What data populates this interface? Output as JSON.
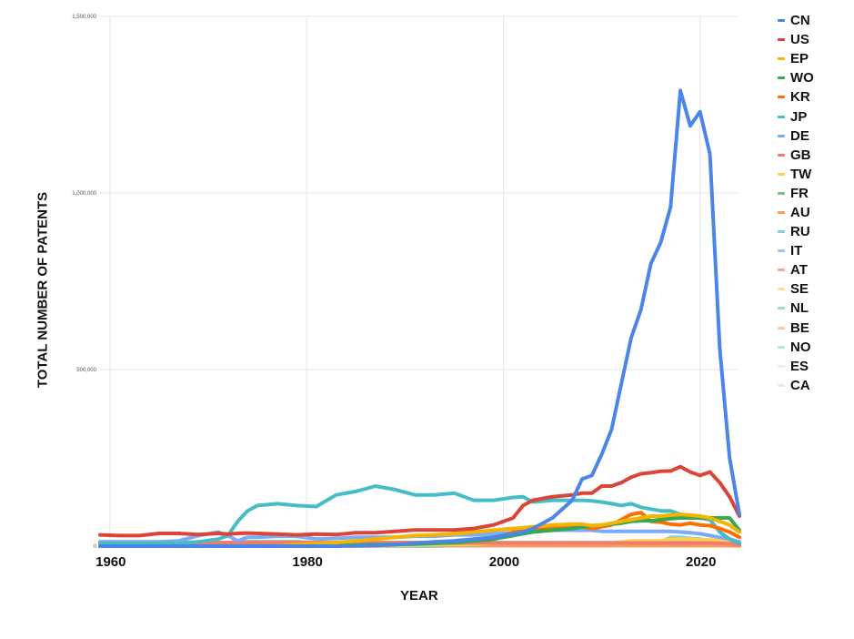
{
  "chart_data": {
    "type": "line",
    "title": "",
    "xlabel": "YEAR",
    "ylabel": "TOTAL NUMBER OF PATENTS",
    "xlim": [
      1959,
      2024
    ],
    "ylim": [
      0,
      1500000
    ],
    "x_ticks": [
      1960,
      1980,
      2000,
      2020
    ],
    "x_tick_labels": [
      "1960",
      "1980",
      "2000",
      "2020"
    ],
    "y_ticks": [
      0,
      500000,
      1000000,
      1500000
    ],
    "y_tick_labels": [
      "0",
      "500,000",
      "1,000,000",
      "1,500,000"
    ],
    "grid": true,
    "legend_position": "right",
    "x": [
      1959,
      1961,
      1963,
      1965,
      1967,
      1969,
      1971,
      1972,
      1973,
      1974,
      1975,
      1977,
      1979,
      1981,
      1983,
      1985,
      1987,
      1989,
      1991,
      1993,
      1995,
      1997,
      1999,
      2001,
      2002,
      2003,
      2005,
      2007,
      2008,
      2009,
      2010,
      2011,
      2012,
      2013,
      2014,
      2015,
      2016,
      2017,
      2018,
      2019,
      2020,
      2021,
      2022,
      2023,
      2024
    ],
    "series": [
      {
        "name": "CN",
        "color": "#4a86e8",
        "values": [
          0,
          0,
          0,
          0,
          0,
          0,
          0,
          0,
          0,
          0,
          0,
          0,
          0,
          0,
          0,
          1000,
          2000,
          4000,
          8000,
          12000,
          15000,
          20000,
          25000,
          35000,
          40000,
          50000,
          80000,
          130000,
          190000,
          200000,
          260000,
          330000,
          460000,
          590000,
          670000,
          800000,
          860000,
          960000,
          1290000,
          1190000,
          1230000,
          1110000,
          560000,
          250000,
          90000
        ]
      },
      {
        "name": "US",
        "color": "#db4437",
        "values": [
          32000,
          30000,
          30000,
          36000,
          36000,
          33000,
          36000,
          34000,
          36000,
          37000,
          36000,
          34000,
          32000,
          34000,
          33000,
          38000,
          38000,
          42000,
          46000,
          46000,
          46000,
          50000,
          60000,
          80000,
          115000,
          130000,
          140000,
          145000,
          150000,
          150000,
          170000,
          170000,
          180000,
          195000,
          205000,
          208000,
          212000,
          213000,
          225000,
          210000,
          200000,
          210000,
          180000,
          140000,
          85000
        ]
      },
      {
        "name": "EP",
        "color": "#f4b400",
        "values": [
          0,
          0,
          0,
          0,
          0,
          0,
          0,
          0,
          0,
          0,
          0,
          0,
          5000,
          8000,
          10000,
          15000,
          20000,
          25000,
          30000,
          32000,
          35000,
          40000,
          45000,
          50000,
          52000,
          55000,
          60000,
          62000,
          62000,
          58000,
          60000,
          65000,
          70000,
          75000,
          80000,
          85000,
          85000,
          88000,
          90000,
          88000,
          85000,
          80000,
          70000,
          60000,
          40000
        ]
      },
      {
        "name": "WO",
        "color": "#34a853",
        "values": [
          0,
          0,
          0,
          0,
          0,
          0,
          0,
          0,
          0,
          0,
          0,
          0,
          0,
          1000,
          2000,
          3000,
          4000,
          5000,
          6000,
          8000,
          10000,
          15000,
          20000,
          30000,
          35000,
          40000,
          45000,
          50000,
          55000,
          58000,
          60000,
          62000,
          65000,
          70000,
          72000,
          72000,
          75000,
          78000,
          80000,
          80000,
          80000,
          80000,
          80000,
          80000,
          45000
        ]
      },
      {
        "name": "KR",
        "color": "#ff6d01",
        "values": [
          0,
          0,
          0,
          0,
          0,
          0,
          0,
          0,
          0,
          0,
          0,
          0,
          0,
          0,
          1000,
          2000,
          3000,
          5000,
          8000,
          10000,
          12000,
          15000,
          20000,
          40000,
          45000,
          48000,
          50000,
          52000,
          55000,
          50000,
          55000,
          60000,
          75000,
          90000,
          95000,
          70000,
          68000,
          62000,
          60000,
          65000,
          60000,
          58000,
          50000,
          40000,
          25000
        ]
      },
      {
        "name": "JP",
        "color": "#46bdc6",
        "values": [
          8000,
          9000,
          8000,
          9000,
          9000,
          12000,
          20000,
          30000,
          70000,
          100000,
          115000,
          120000,
          115000,
          112000,
          145000,
          155000,
          170000,
          160000,
          145000,
          145000,
          150000,
          130000,
          130000,
          138000,
          140000,
          125000,
          130000,
          130000,
          130000,
          128000,
          125000,
          120000,
          115000,
          120000,
          110000,
          105000,
          100000,
          100000,
          90000,
          85000,
          80000,
          75000,
          40000,
          20000,
          8000
        ]
      },
      {
        "name": "DE",
        "color": "#7baaf7",
        "values": [
          12000,
          12000,
          12000,
          12000,
          15000,
          30000,
          40000,
          30000,
          15000,
          25000,
          25000,
          28000,
          28000,
          20000,
          22000,
          25000,
          25000,
          25000,
          28000,
          28000,
          32000,
          32000,
          35000,
          38000,
          40000,
          42000,
          45000,
          45000,
          45000,
          45000,
          42000,
          42000,
          42000,
          42000,
          42000,
          42000,
          42000,
          42000,
          40000,
          38000,
          35000,
          30000,
          25000,
          20000,
          12000
        ]
      },
      {
        "name": "GB",
        "color": "#f07b72",
        "values": [
          10000,
          10000,
          10000,
          10000,
          10000,
          10000,
          10000,
          10000,
          10000,
          10000,
          10000,
          10000,
          10000,
          10000,
          10000,
          10000,
          10000,
          10000,
          10000,
          9000,
          9000,
          9000,
          9000,
          9000,
          9000,
          9000,
          9000,
          9000,
          9000,
          9000,
          9000,
          9000,
          9000,
          9000,
          9000,
          9000,
          9000,
          9000,
          9000,
          9000,
          9000,
          9000,
          8000,
          7000,
          5000
        ]
      },
      {
        "name": "TW",
        "color": "#fcd04f",
        "values": [
          0,
          0,
          0,
          0,
          0,
          0,
          0,
          0,
          0,
          0,
          0,
          0,
          0,
          0,
          0,
          0,
          1000,
          2000,
          3000,
          4000,
          5000,
          6000,
          8000,
          10000,
          10000,
          10000,
          10000,
          10000,
          10000,
          10000,
          10000,
          10000,
          12000,
          15000,
          15000,
          15000,
          15000,
          20000,
          20000,
          20000,
          18000,
          18000,
          15000,
          12000,
          8000
        ]
      },
      {
        "name": "FR",
        "color": "#71c287",
        "values": [
          10000,
          10000,
          10000,
          10000,
          10000,
          10000,
          10000,
          10000,
          12000,
          12000,
          12000,
          12000,
          12000,
          10000,
          10000,
          10000,
          10000,
          10000,
          10000,
          10000,
          10000,
          10000,
          10000,
          10000,
          10000,
          10000,
          10000,
          10000,
          10000,
          10000,
          10000,
          10000,
          10000,
          10000,
          10000,
          10000,
          10000,
          10000,
          10000,
          10000,
          10000,
          10000,
          10000,
          9000,
          6000
        ]
      },
      {
        "name": "AU",
        "color": "#ff994d",
        "values": [
          2000,
          2000,
          2000,
          2000,
          2000,
          2000,
          2000,
          2000,
          2000,
          2000,
          2000,
          2000,
          2000,
          2000,
          2000,
          2000,
          3000,
          3000,
          3000,
          3000,
          3000,
          3000,
          3000,
          3000,
          3000,
          3000,
          3000,
          3000,
          3000,
          3000,
          3000,
          3000,
          3000,
          3000,
          3000,
          3000,
          3000,
          3000,
          3000,
          3000,
          3000,
          3000,
          3000,
          2000,
          1000
        ]
      },
      {
        "name": "RU",
        "color": "#7ed1d7",
        "values": [
          0,
          0,
          0,
          0,
          0,
          0,
          0,
          0,
          0,
          0,
          0,
          0,
          0,
          0,
          0,
          0,
          0,
          0,
          0,
          0,
          2000,
          3000,
          3000,
          3000,
          3000,
          3000,
          3000,
          3000,
          3000,
          3000,
          3000,
          3000,
          5000,
          10000,
          15000,
          12000,
          10000,
          25000,
          25000,
          22000,
          20000,
          15000,
          10000,
          5000,
          2000
        ]
      },
      {
        "name": "IT",
        "color": "#a0c3f5",
        "values": [
          3000,
          3000,
          3000,
          3000,
          3000,
          3000,
          3000,
          3000,
          3000,
          3000,
          3000,
          3000,
          3000,
          3000,
          3000,
          3000,
          3000,
          3000,
          3000,
          3000,
          3000,
          3000,
          3000,
          3000,
          3000,
          3000,
          3000,
          3000,
          3000,
          3000,
          3000,
          3000,
          3000,
          3000,
          3000,
          3000,
          3000,
          3000,
          3000,
          3000,
          3000,
          3000,
          3000,
          3000,
          2000
        ]
      },
      {
        "name": "AT",
        "color": "#f3a6a1",
        "values": [
          2000,
          2000,
          2000,
          2000,
          2000,
          2000,
          2000,
          2000,
          2000,
          2000,
          2000,
          2000,
          2000,
          2000,
          2000,
          2000,
          2000,
          2000,
          2000,
          2000,
          2000,
          2000,
          2000,
          2000,
          2000,
          2000,
          2000,
          2000,
          2000,
          2000,
          2000,
          2000,
          2000,
          2000,
          2000,
          2000,
          2000,
          2000,
          2000,
          2000,
          2000,
          2000,
          2000,
          2000,
          1000
        ]
      },
      {
        "name": "SE",
        "color": "#fde293",
        "values": [
          2000,
          2000,
          2000,
          2000,
          2000,
          2000,
          2000,
          2000,
          2000,
          2000,
          2000,
          2000,
          2000,
          2000,
          2000,
          2000,
          2000,
          2000,
          2000,
          2000,
          2000,
          2000,
          2000,
          2000,
          2000,
          2000,
          2000,
          2000,
          2000,
          2000,
          2000,
          2000,
          2000,
          2000,
          2000,
          2000,
          2000,
          2000,
          2000,
          2000,
          2000,
          2000,
          2000,
          2000,
          1000
        ]
      },
      {
        "name": "NL",
        "color": "#a8dab5",
        "values": [
          2000,
          2000,
          2000,
          2000,
          2000,
          2000,
          2000,
          2000,
          2000,
          2000,
          2000,
          2000,
          2000,
          2000,
          2000,
          2000,
          2000,
          2000,
          2000,
          2000,
          2000,
          2000,
          2000,
          2000,
          2000,
          2000,
          2000,
          2000,
          2000,
          2000,
          2000,
          2000,
          2000,
          2000,
          2000,
          2000,
          2000,
          2000,
          2000,
          2000,
          2000,
          2000,
          2000,
          2000,
          1000
        ]
      },
      {
        "name": "BE",
        "color": "#ffc8a0",
        "values": [
          1000,
          1000,
          1000,
          1000,
          1000,
          1000,
          1000,
          1000,
          1000,
          1000,
          1000,
          1000,
          1000,
          1000,
          1000,
          1000,
          1000,
          1000,
          1000,
          1000,
          1000,
          1000,
          1000,
          1000,
          1000,
          1000,
          1000,
          1000,
          1000,
          1000,
          1000,
          1000,
          1000,
          1000,
          1000,
          1000,
          1000,
          1000,
          1000,
          1000,
          1000,
          1000,
          1000,
          1000,
          500
        ]
      },
      {
        "name": "NO",
        "color": "#b5e4e7",
        "values": [
          1000,
          1000,
          1000,
          1000,
          1000,
          1000,
          1000,
          1000,
          1000,
          1000,
          1000,
          1000,
          1000,
          1000,
          1000,
          1000,
          1000,
          1000,
          1000,
          1000,
          1000,
          1000,
          1000,
          1000,
          1000,
          1000,
          1000,
          1000,
          1000,
          1000,
          1000,
          1000,
          1000,
          1000,
          1000,
          1000,
          1000,
          1000,
          1000,
          1000,
          1000,
          1000,
          1000,
          1000,
          500
        ]
      },
      {
        "name": "ES",
        "color": "#e8eef8",
        "values": [
          1000,
          1000,
          1000,
          1000,
          1000,
          1000,
          1000,
          1000,
          1000,
          1000,
          1000,
          1000,
          1000,
          1000,
          1000,
          1000,
          1000,
          1000,
          1000,
          1000,
          1000,
          1000,
          1000,
          1000,
          1000,
          1000,
          1000,
          1000,
          1000,
          1000,
          1000,
          1000,
          1000,
          1000,
          1000,
          1000,
          1000,
          1000,
          1000,
          1000,
          1000,
          1000,
          1000,
          1000,
          500
        ]
      },
      {
        "name": "CA",
        "color": "#f6e1e8",
        "values": [
          1000,
          1000,
          1000,
          1000,
          1000,
          1000,
          1000,
          1000,
          1000,
          1000,
          1000,
          1000,
          1000,
          1000,
          1000,
          1000,
          1000,
          1000,
          1000,
          1000,
          1000,
          1000,
          1000,
          1000,
          1000,
          1000,
          1000,
          1000,
          1000,
          1000,
          1000,
          1000,
          1000,
          1000,
          1000,
          1000,
          1000,
          1000,
          1000,
          1000,
          1000,
          1000,
          1000,
          1000,
          500
        ]
      }
    ]
  },
  "legend": {
    "items": [
      {
        "label": "CN",
        "color": "#4a86e8"
      },
      {
        "label": "US",
        "color": "#db4437"
      },
      {
        "label": "EP",
        "color": "#f4b400"
      },
      {
        "label": "WO",
        "color": "#34a853"
      },
      {
        "label": "KR",
        "color": "#ff6d01"
      },
      {
        "label": "JP",
        "color": "#46bdc6"
      },
      {
        "label": "DE",
        "color": "#7baaf7"
      },
      {
        "label": "GB",
        "color": "#f07b72"
      },
      {
        "label": "TW",
        "color": "#fcd04f"
      },
      {
        "label": "FR",
        "color": "#71c287"
      },
      {
        "label": "AU",
        "color": "#ff994d"
      },
      {
        "label": "RU",
        "color": "#7ed1d7"
      },
      {
        "label": "IT",
        "color": "#a0c3f5"
      },
      {
        "label": "AT",
        "color": "#f3a6a1"
      },
      {
        "label": "SE",
        "color": "#fde293"
      },
      {
        "label": "NL",
        "color": "#a8dab5"
      },
      {
        "label": "BE",
        "color": "#ffc8a0"
      },
      {
        "label": "NO",
        "color": "#b5e4e7"
      },
      {
        "label": "ES",
        "color": "#e8eef8"
      },
      {
        "label": "CA",
        "color": "#f6e1e8"
      }
    ]
  },
  "axes": {
    "xlabel": "YEAR",
    "ylabel": "TOTAL NUMBER OF PATENTS"
  }
}
